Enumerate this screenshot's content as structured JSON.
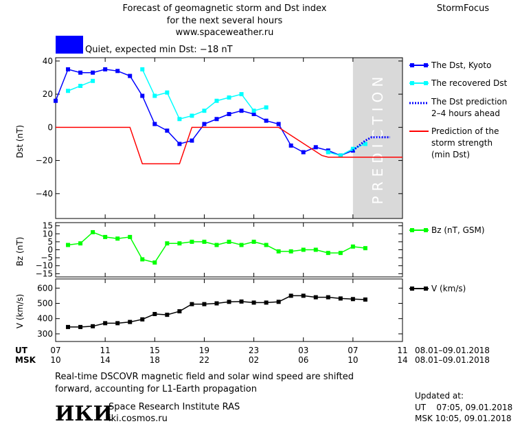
{
  "header": {
    "title_lines": [
      "Forecast of geomagnetic storm and Dst index",
      "for the next several hours",
      "www.spaceweather.ru"
    ],
    "brand": "StormFocus",
    "status_text": "Quiet, expected min Dst: −18 nT",
    "status_color": "#0000ff"
  },
  "prediction_label": "PREDICTION",
  "footer": {
    "note_lines": [
      "Real-time DSCOVR magnetic field and solar wind speed are shifted",
      "forward, accounting for L1-Earth propagation"
    ],
    "institute": "Space Research Institute RAS",
    "url": "iki.cosmos.ru",
    "logo_text": "ИКИ",
    "updated_label": "Updated at:",
    "updated_ut": "UT    07:05, 09.01.2018",
    "updated_msk": "MSK 10:05, 09.01.2018"
  },
  "axis_rows": {
    "ut_label": "UT",
    "msk_label": "MSK",
    "ut_range": "08.01–09.01.2018",
    "msk_range": "08.01–09.01.2018"
  },
  "chart_data": [
    {
      "type": "line",
      "ylabel": "Dst (nT)",
      "ylim": [
        -55,
        42
      ],
      "yticks": [
        -40,
        -20,
        0,
        20,
        40
      ],
      "xlim": [
        7,
        35
      ],
      "xticks": [
        7,
        11,
        15,
        19,
        23,
        27,
        31,
        35
      ],
      "xtick_labels_ut": [
        "07",
        "11",
        "15",
        "19",
        "23",
        "03",
        "07",
        "11"
      ],
      "xtick_labels_msk": [
        "10",
        "14",
        "18",
        "22",
        "02",
        "06",
        "10",
        "14"
      ],
      "prediction_band": [
        31,
        35
      ],
      "series": [
        {
          "name": "The Dst, Kyoto",
          "color": "#0000ff",
          "marker": "square",
          "x": [
            7,
            8,
            9,
            10,
            11,
            12,
            13,
            14,
            15,
            16,
            17,
            18,
            19,
            20,
            21,
            22,
            23,
            24,
            25,
            26,
            27,
            28,
            29,
            30,
            31
          ],
          "y": [
            16,
            35,
            33,
            33,
            35,
            34,
            31,
            19,
            2,
            -2,
            -10,
            -8,
            2,
            5,
            8,
            10,
            8,
            4,
            2,
            -11,
            -15,
            -12,
            -14,
            -17,
            -14
          ]
        },
        {
          "name": "The recovered Dst",
          "color": "#00ffff",
          "marker": "square",
          "segments": [
            {
              "x": [
                8,
                9,
                10
              ],
              "y": [
                22,
                25,
                28
              ]
            },
            {
              "x": [
                14,
                15,
                16,
                17,
                18,
                19,
                20,
                21,
                22,
                23,
                24
              ],
              "y": [
                35,
                19,
                21,
                5,
                7,
                10,
                16,
                18,
                20,
                10,
                12
              ]
            },
            {
              "x": [
                29,
                30,
                31,
                32
              ],
              "y": [
                -15,
                -17,
                -13,
                -10
              ]
            }
          ]
        },
        {
          "name": "The Dst prediction\n2–4 hours ahead",
          "color": "#0000ff",
          "style": "dotted",
          "x": [
            31,
            32,
            32.5,
            34
          ],
          "y": [
            -14,
            -8,
            -6,
            -6
          ]
        },
        {
          "name": "Prediction of the\nstorm strength\n(min Dst)",
          "color": "#ff0000",
          "x": [
            7,
            13,
            14,
            17,
            18,
            25,
            28.5,
            29,
            35
          ],
          "y": [
            0,
            0,
            -22,
            -22,
            0,
            0,
            -17,
            -18,
            -18
          ]
        }
      ]
    },
    {
      "type": "line",
      "ylabel": "Bz (nT)",
      "ylim": [
        -17,
        17
      ],
      "yticks": [
        -15,
        -10,
        -5,
        0,
        5,
        10,
        15
      ],
      "series": [
        {
          "name": "Bz (nT, GSM)",
          "color": "#00ff00",
          "marker": "square",
          "x": [
            8,
            9,
            10,
            11,
            12,
            13,
            14,
            15,
            16,
            17,
            18,
            19,
            20,
            21,
            22,
            23,
            24,
            25,
            26,
            27,
            28,
            29,
            30,
            31,
            32
          ],
          "y": [
            3,
            4,
            11,
            8,
            7,
            8,
            -6,
            -8,
            4,
            4,
            5,
            5,
            3,
            5,
            3,
            5,
            3,
            -1,
            -1,
            0,
            0,
            -2,
            -2,
            2,
            1
          ]
        }
      ]
    },
    {
      "type": "line",
      "ylabel": "V (km/s)",
      "ylim": [
        250,
        660
      ],
      "yticks": [
        300,
        400,
        500,
        600
      ],
      "series": [
        {
          "name": "V (km/s)",
          "color": "#000000",
          "marker": "square",
          "x": [
            8,
            9,
            10,
            11,
            12,
            13,
            14,
            15,
            16,
            17,
            18,
            19,
            20,
            21,
            22,
            23,
            24,
            25,
            26,
            27,
            28,
            29,
            30,
            31,
            32
          ],
          "y": [
            345,
            345,
            350,
            370,
            370,
            378,
            395,
            430,
            425,
            448,
            495,
            495,
            500,
            510,
            512,
            505,
            505,
            510,
            550,
            550,
            540,
            540,
            532,
            528,
            525
          ]
        }
      ]
    }
  ]
}
